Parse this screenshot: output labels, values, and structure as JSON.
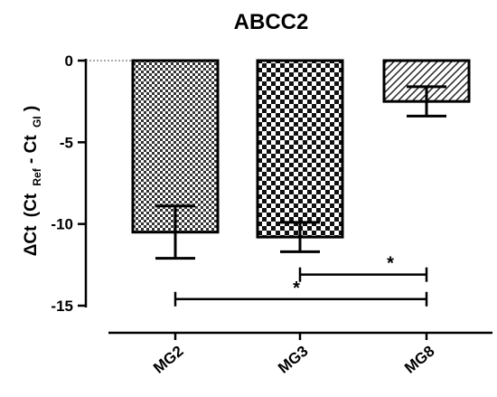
{
  "chart_data": {
    "type": "bar",
    "title": "ABCC2",
    "ylabel": {
      "delta": "ΔCt",
      "open": "(Ct",
      "sub1": "Ref",
      "mid": " - Ct",
      "sub2": "GI",
      "close": ")"
    },
    "categories": [
      "MG2",
      "MG3",
      "MG8"
    ],
    "values": [
      -10.5,
      -10.8,
      -2.5
    ],
    "error": [
      1.6,
      0.9,
      0.9
    ],
    "ylim": [
      -15,
      0
    ],
    "yticks": [
      0,
      -5,
      -10,
      -15
    ],
    "patterns": [
      "fine-check",
      "coarse-check",
      "diagonal-hatch"
    ],
    "significance": [
      {
        "from": "MG3",
        "to": "MG8",
        "label": "*",
        "y": -13.1
      },
      {
        "from": "MG2",
        "to": "MG8",
        "label": "*",
        "y": -14.6
      }
    ],
    "grid": false,
    "legend": "none"
  }
}
